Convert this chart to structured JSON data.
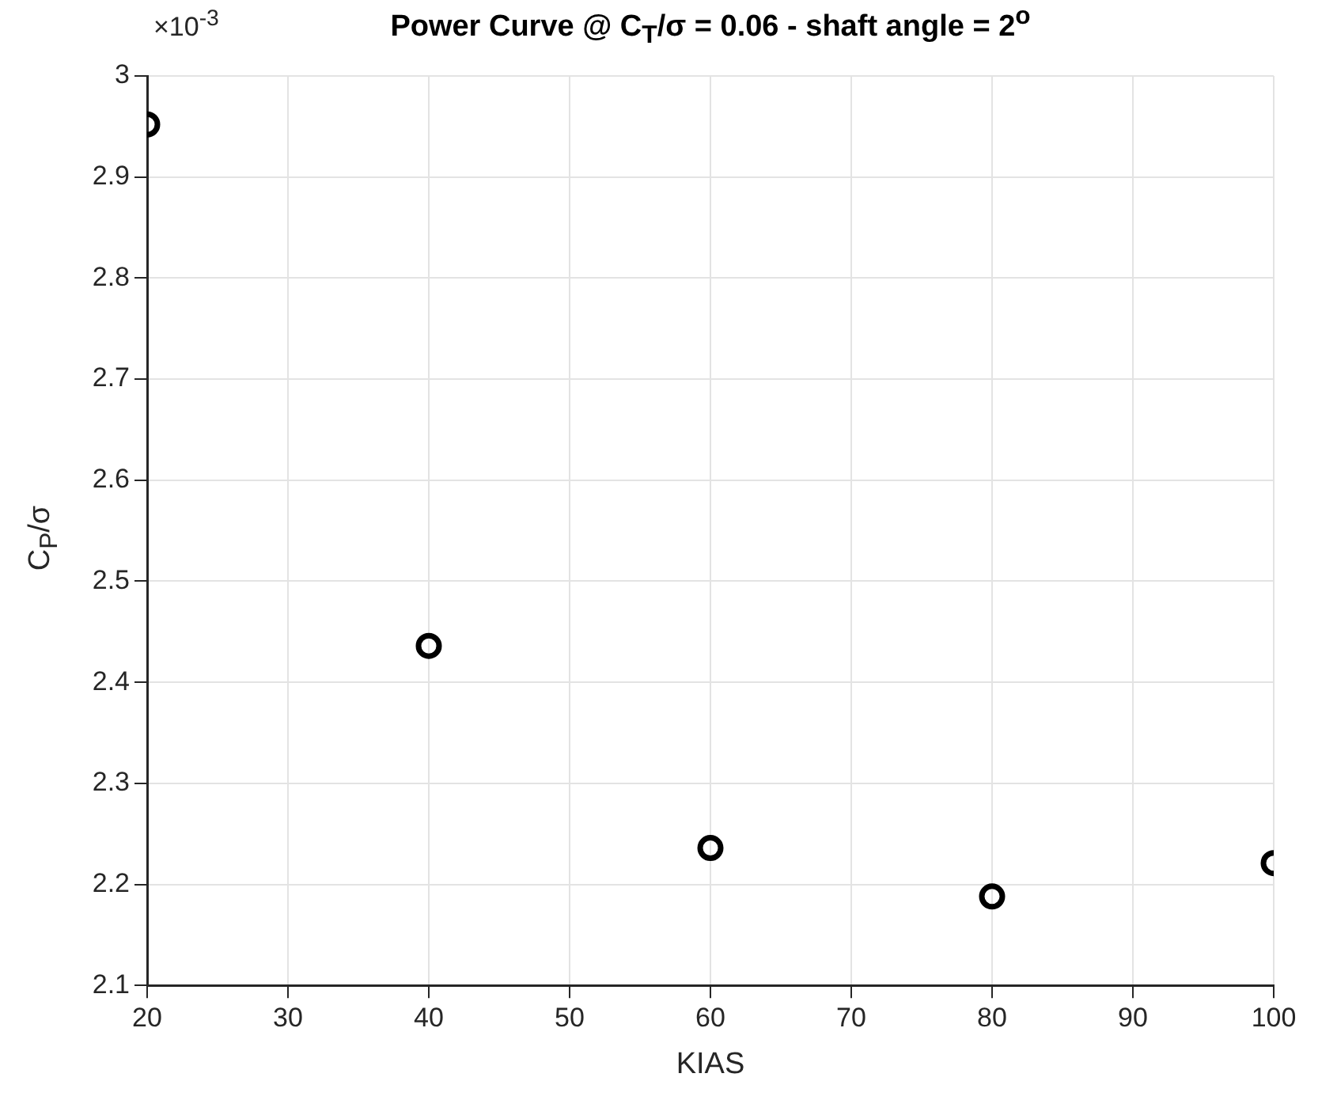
{
  "chart_data": {
    "type": "scatter",
    "title": "Power Curve @ C$_{T}$/σ = 0.06 - shaft angle = 2$^{o}$",
    "xlabel": "KIAS",
    "ylabel": "C$_{P}$/σ",
    "annotations": [
      "×10$^{-3}$"
    ],
    "x": [
      20,
      40,
      60,
      80,
      100
    ],
    "series": [
      {
        "color": "#000000",
        "values": [
          2.952,
          2.436,
          2.236,
          2.188,
          2.221
        ]
      }
    ],
    "xlim": [
      20,
      100
    ],
    "xticks": [
      20,
      30,
      40,
      50,
      60,
      70,
      80,
      90,
      100
    ],
    "ylim": [
      2.1,
      3
    ],
    "yticks": [
      2.1,
      2.2,
      2.3,
      2.4,
      2.5,
      2.6,
      2.7,
      2.8,
      2.9,
      3
    ],
    "grid": true,
    "legend": false,
    "marker": "circle"
  }
}
